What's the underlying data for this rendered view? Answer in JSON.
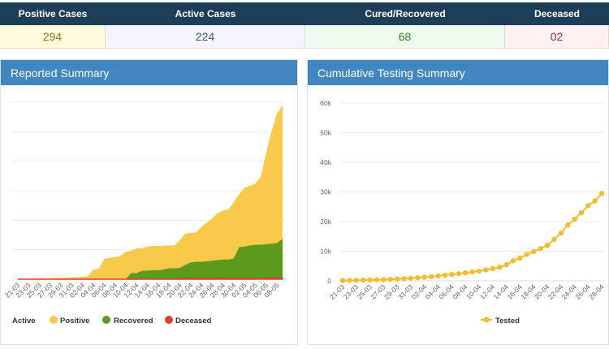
{
  "stats": {
    "headers": [
      "Positive Cases",
      "Active Cases",
      "Cured/Recovered",
      "Deceased"
    ],
    "values": [
      "294",
      "224",
      "68",
      "02"
    ],
    "value_colors": [
      "#8a7a22",
      "#3f5a75",
      "#3f7a2a",
      "#a03030"
    ],
    "cell_backgrounds": [
      "#fffcdc",
      "#f3f4fd",
      "#edfaee",
      "#fff1f1"
    ]
  },
  "panels": {
    "left_title": "Reported Summary",
    "right_title": "Cumulative Testing Summary"
  },
  "chart_data": [
    {
      "type": "area",
      "title": "Reported Summary",
      "categories": [
        "21-03",
        "22-03",
        "23-03",
        "24-03",
        "25-03",
        "26-03",
        "27-03",
        "28-03",
        "29-03",
        "30-03",
        "31-03",
        "01-04",
        "02-04",
        "03-04",
        "04-04",
        "05-04",
        "06-04",
        "07-04",
        "08-04",
        "09-04",
        "10-04",
        "11-04",
        "12-04",
        "13-04",
        "14-04",
        "15-04",
        "16-04",
        "17-04",
        "18-04",
        "19-04",
        "20-04",
        "21-04",
        "22-04",
        "23-04",
        "24-04",
        "25-04",
        "26-04",
        "27-04",
        "28-04",
        "29-04",
        "30-04",
        "01-05",
        "02-05",
        "03-05",
        "04-05",
        "05-05",
        "06-05",
        "07-05",
        "08-05",
        "09-05"
      ],
      "ylim": [
        0,
        300
      ],
      "grid": true,
      "legend": "bottom",
      "series": [
        {
          "name": "Active",
          "hidden": true,
          "color": "#999999"
        },
        {
          "name": "Positive",
          "color": "#f8c94a",
          "values": [
            0,
            0,
            0,
            1,
            1,
            1,
            1,
            2,
            2,
            2,
            3,
            3,
            4,
            5,
            16,
            17,
            34,
            36,
            37,
            39,
            46,
            48,
            52,
            52,
            55,
            56,
            56,
            56,
            57,
            57,
            66,
            77,
            78,
            79,
            88,
            96,
            103,
            112,
            116,
            118,
            130,
            144,
            155,
            158,
            162,
            173,
            213,
            250,
            280,
            294
          ]
        },
        {
          "name": "Recovered",
          "color": "#5b9a1c",
          "values": [
            0,
            0,
            0,
            0,
            0,
            0,
            0,
            0,
            0,
            0,
            0,
            0,
            0,
            0,
            0,
            0,
            0,
            0,
            0,
            0,
            0,
            10,
            10,
            14,
            14,
            15,
            15,
            16,
            18,
            18,
            19,
            24,
            28,
            29,
            29,
            30,
            31,
            32,
            33,
            33,
            35,
            54,
            55,
            57,
            58,
            58,
            59,
            60,
            61,
            68
          ]
        },
        {
          "name": "Deceased",
          "color": "#e0412f",
          "values": [
            0,
            0,
            0,
            0,
            0,
            0,
            0,
            0,
            0,
            0,
            0,
            0,
            0,
            0,
            0,
            0,
            0,
            0,
            0,
            0,
            0,
            0,
            0,
            0,
            0,
            0,
            0,
            0,
            0,
            0,
            1,
            1,
            1,
            1,
            1,
            1,
            1,
            1,
            1,
            1,
            1,
            1,
            1,
            1,
            1,
            1,
            2,
            2,
            2,
            2
          ]
        }
      ]
    },
    {
      "type": "line",
      "title": "Cumulative Testing Summary",
      "categories": [
        "21-03",
        "22-03",
        "23-03",
        "24-03",
        "25-03",
        "26-03",
        "27-03",
        "28-03",
        "29-03",
        "30-03",
        "31-03",
        "01-04",
        "02-04",
        "03-04",
        "04-04",
        "05-04",
        "06-04",
        "07-04",
        "08-04",
        "09-04",
        "10-04",
        "11-04",
        "12-04",
        "13-04",
        "14-04",
        "15-04",
        "16-04",
        "17-04",
        "18-04",
        "19-04",
        "20-04",
        "21-04",
        "22-04",
        "23-04",
        "24-04",
        "25-04",
        "26-04",
        "27-04",
        "28-04"
      ],
      "yticks": [
        "0",
        "10k",
        "20k",
        "30k",
        "40k",
        "50k",
        "60k"
      ],
      "ylim": [
        0,
        60000
      ],
      "grid": true,
      "legend": "bottom",
      "series": [
        {
          "name": "Tested",
          "color": "#f4bc2f",
          "values": [
            100,
            150,
            200,
            250,
            300,
            350,
            400,
            500,
            600,
            750,
            900,
            1050,
            1200,
            1400,
            1650,
            1900,
            2150,
            2400,
            2700,
            3000,
            3300,
            3700,
            4100,
            4600,
            5400,
            6800,
            7700,
            8900,
            9900,
            10900,
            12000,
            14000,
            16100,
            18800,
            20800,
            23000,
            25400,
            27000,
            29500
          ]
        }
      ]
    }
  ]
}
